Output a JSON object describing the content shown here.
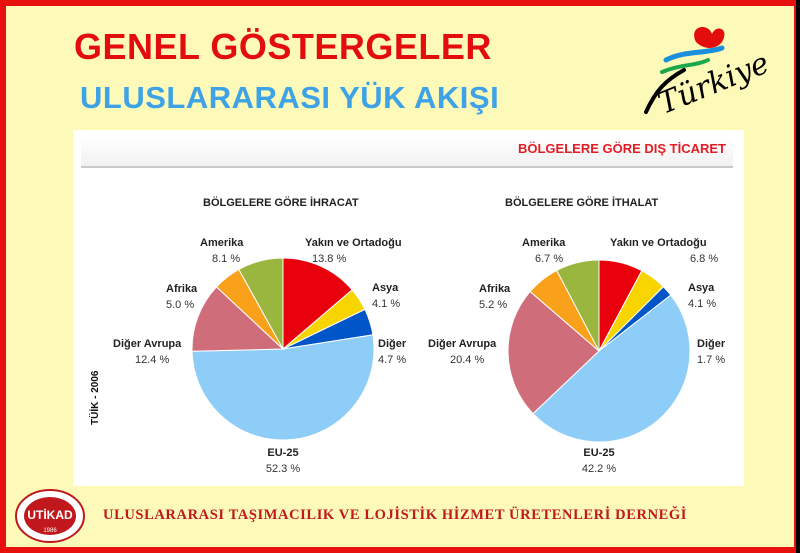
{
  "header": {
    "title": "GENEL GÖSTERGELER",
    "subtitle": "ULUSLARARASI  YÜK AKIŞI",
    "logo_text": "Türkiye"
  },
  "panel": {
    "title": "BÖLGELERE GÖRE DIŞ TİCARET",
    "source_label": "TÜİK - 2006"
  },
  "chart_data": [
    {
      "type": "pie",
      "title": "BÖLGELERE GÖRE İHRACAT",
      "slices": [
        {
          "label": "Yakın ve Ortadoğu",
          "value": 13.8,
          "value_text": "13.8 %",
          "color": "#e8000d"
        },
        {
          "label": "Asya",
          "value": 4.1,
          "value_text": "4.1 %",
          "color": "#f8d500"
        },
        {
          "label": "Diğer",
          "value": 4.7,
          "value_text": "4.7 %",
          "color": "#0055c8"
        },
        {
          "label": "EU-25",
          "value": 52.3,
          "value_text": "52.3 %",
          "color": "#8ecdf8"
        },
        {
          "label": "Diğer Avrupa",
          "value": 12.4,
          "value_text": "12.4 %",
          "color": "#cf6e7a"
        },
        {
          "label": "Afrika",
          "value": 5.0,
          "value_text": "5.0 %",
          "color": "#f9a11b"
        },
        {
          "label": "Amerika",
          "value": 8.1,
          "value_text": "8.1 %",
          "color": "#9bb63f"
        }
      ]
    },
    {
      "type": "pie",
      "title": "BÖLGELERE GÖRE İTHALAT",
      "slices": [
        {
          "label": "Yakın ve Ortadoğu",
          "value": 6.8,
          "value_text": "6.8 %",
          "color": "#e8000d"
        },
        {
          "label": "Asya",
          "value": 4.1,
          "value_text": "4.1 %",
          "color": "#f8d500"
        },
        {
          "label": "Diğer",
          "value": 1.7,
          "value_text": "1.7 %",
          "color": "#0055c8"
        },
        {
          "label": "EU-25",
          "value": 42.2,
          "value_text": "42.2 %",
          "color": "#8ecdf8"
        },
        {
          "label": "Diğer Avrupa",
          "value": 20.4,
          "value_text": "20.4 %",
          "color": "#cf6e7a"
        },
        {
          "label": "Afrika",
          "value": 5.2,
          "value_text": "5.2 %",
          "color": "#f9a11b"
        },
        {
          "label": "Amerika",
          "value": 6.7,
          "value_text": "6.7 %",
          "color": "#9bb63f"
        }
      ]
    }
  ],
  "footer": {
    "org_name": "ULUSLARARASI TAŞIMACILIK VE LOJİSTİK HİZMET ÜRETENLERİ DERNEĞİ",
    "logo_text": "UTİKAD",
    "logo_year": "1986"
  }
}
